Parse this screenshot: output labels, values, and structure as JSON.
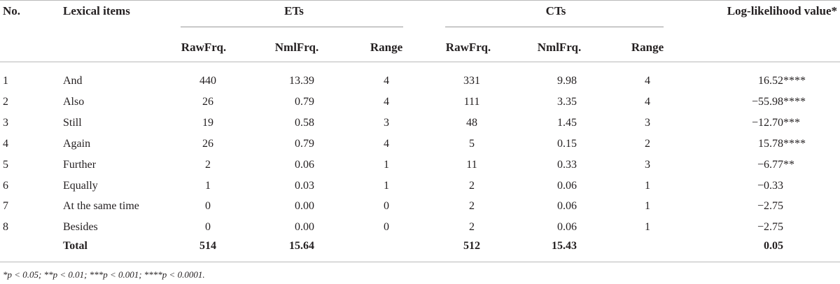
{
  "headers": {
    "no": "No.",
    "lexical": "Lexical items",
    "ets": "ETs",
    "cts": "CTs",
    "ll": "Log-likelihood value*",
    "raw": "RawFrq.",
    "nml": "NmlFrq.",
    "range": "Range"
  },
  "rows": [
    {
      "no": "1",
      "item": "And",
      "et_raw": "440",
      "et_nml": "13.39",
      "et_range": "4",
      "ct_raw": "331",
      "ct_nml": "9.98",
      "ct_range": "4",
      "ll": "16.52****"
    },
    {
      "no": "2",
      "item": "Also",
      "et_raw": "26",
      "et_nml": "0.79",
      "et_range": "4",
      "ct_raw": "111",
      "ct_nml": "3.35",
      "ct_range": "4",
      "ll": "−55.98****"
    },
    {
      "no": "3",
      "item": "Still",
      "et_raw": "19",
      "et_nml": "0.58",
      "et_range": "3",
      "ct_raw": "48",
      "ct_nml": "1.45",
      "ct_range": "3",
      "ll": "−12.70***"
    },
    {
      "no": "4",
      "item": "Again",
      "et_raw": "26",
      "et_nml": "0.79",
      "et_range": "4",
      "ct_raw": "5",
      "ct_nml": "0.15",
      "ct_range": "2",
      "ll": "15.78****"
    },
    {
      "no": "5",
      "item": "Further",
      "et_raw": "2",
      "et_nml": "0.06",
      "et_range": "1",
      "ct_raw": "11",
      "ct_nml": "0.33",
      "ct_range": "3",
      "ll": "−6.77**"
    },
    {
      "no": "6",
      "item": "Equally",
      "et_raw": "1",
      "et_nml": "0.03",
      "et_range": "1",
      "ct_raw": "2",
      "ct_nml": "0.06",
      "ct_range": "1",
      "ll": "−0.33"
    },
    {
      "no": "7",
      "item": "At the same time",
      "et_raw": "0",
      "et_nml": "0.00",
      "et_range": "0",
      "ct_raw": "2",
      "ct_nml": "0.06",
      "ct_range": "1",
      "ll": "−2.75"
    },
    {
      "no": "8",
      "item": "Besides",
      "et_raw": "0",
      "et_nml": "0.00",
      "et_range": "0",
      "ct_raw": "2",
      "ct_nml": "0.06",
      "ct_range": "1",
      "ll": "−2.75"
    }
  ],
  "total": {
    "label": "Total",
    "et_raw": "514",
    "et_nml": "15.64",
    "ct_raw": "512",
    "ct_nml": "15.43",
    "ll": "0.05"
  },
  "footnote": "*p < 0.05; **p < 0.01; ***p < 0.001; ****p < 0.0001."
}
